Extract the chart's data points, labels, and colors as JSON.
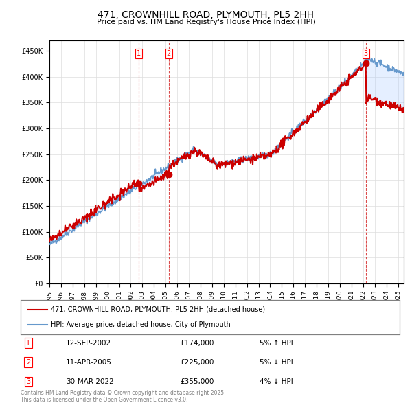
{
  "title": "471, CROWNHILL ROAD, PLYMOUTH, PL5 2HH",
  "subtitle": "Price paid vs. HM Land Registry's House Price Index (HPI)",
  "property_label": "471, CROWNHILL ROAD, PLYMOUTH, PL5 2HH (detached house)",
  "hpi_label": "HPI: Average price, detached house, City of Plymouth",
  "footnote": "Contains HM Land Registry data © Crown copyright and database right 2025.\nThis data is licensed under the Open Government Licence v3.0.",
  "transactions": [
    {
      "num": 1,
      "date": "12-SEP-2002",
      "price": 174000,
      "pct": "5%",
      "dir": "↑",
      "x": 2002.7
    },
    {
      "num": 2,
      "date": "11-APR-2005",
      "price": 225000,
      "pct": "5%",
      "dir": "↓",
      "x": 2005.27
    },
    {
      "num": 3,
      "date": "30-MAR-2022",
      "price": 355000,
      "pct": "4%",
      "dir": "↓",
      "x": 2022.24
    }
  ],
  "vline_color": "#cc0000",
  "vline_alpha": 0.5,
  "shaded_color": "#aaccff",
  "shaded_alpha": 0.3,
  "property_line_color": "#cc0000",
  "hpi_line_color": "#6699cc",
  "background_color": "#ffffff",
  "plot_bg_color": "#ffffff",
  "ylim": [
    0,
    470000
  ],
  "xlim_start": 1995,
  "xlim_end": 2025.5
}
